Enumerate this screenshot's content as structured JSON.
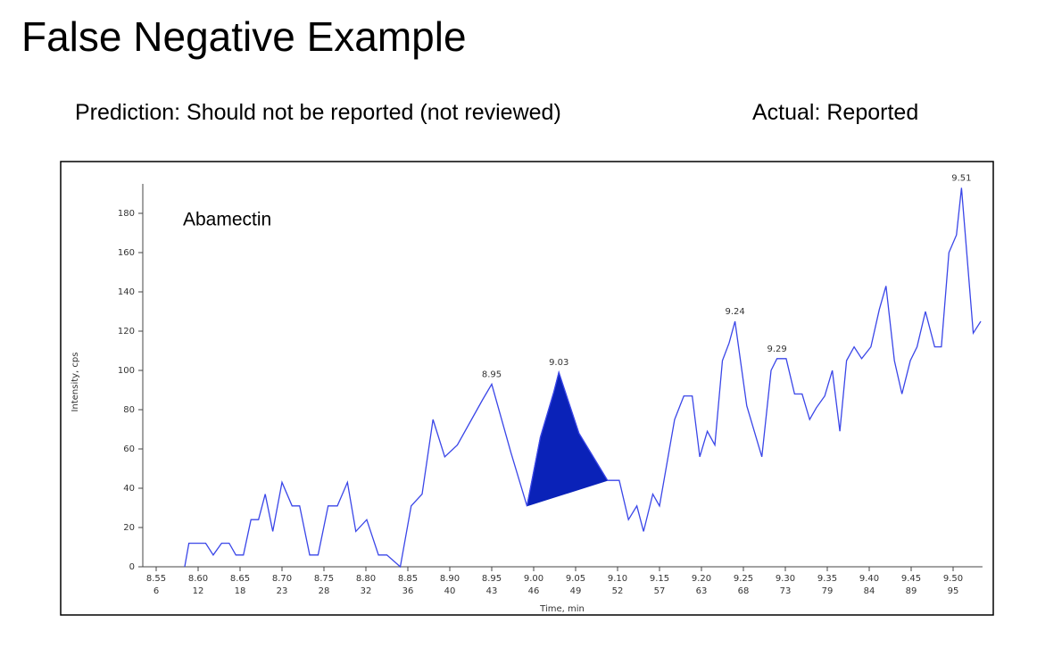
{
  "title": "False Negative Example",
  "prediction": "Prediction: Should not be reported (not reviewed)",
  "actual": "Actual: Reported",
  "chart_data": {
    "type": "line",
    "title": "Abamectin",
    "x_label": "Time, min",
    "y_label": "Intensity, cps",
    "xlim": [
      8.535,
      9.535
    ],
    "ylim": [
      0,
      195
    ],
    "yticks": [
      0,
      20,
      40,
      60,
      80,
      100,
      120,
      140,
      160,
      180
    ],
    "xticks": [
      {
        "value": 8.55,
        "label": "8.55"
      },
      {
        "value": 8.6,
        "label": "8.60"
      },
      {
        "value": 8.65,
        "label": "8.65"
      },
      {
        "value": 8.7,
        "label": "8.70"
      },
      {
        "value": 8.75,
        "label": "8.75"
      },
      {
        "value": 8.8,
        "label": "8.80"
      },
      {
        "value": 8.85,
        "label": "8.85"
      },
      {
        "value": 8.9,
        "label": "8.90"
      },
      {
        "value": 8.95,
        "label": "8.95"
      },
      {
        "value": 9.0,
        "label": "9.00"
      },
      {
        "value": 9.05,
        "label": "9.05"
      },
      {
        "value": 9.1,
        "label": "9.10"
      },
      {
        "value": 9.15,
        "label": "9.15"
      },
      {
        "value": 9.2,
        "label": "9.20"
      },
      {
        "value": 9.25,
        "label": "9.25"
      },
      {
        "value": 9.3,
        "label": "9.30"
      },
      {
        "value": 9.35,
        "label": "9.35"
      },
      {
        "value": 9.4,
        "label": "9.40"
      },
      {
        "value": 9.45,
        "label": "9.45"
      },
      {
        "value": 9.5,
        "label": "9.50"
      }
    ],
    "scan_labels": [
      6,
      12,
      18,
      23,
      28,
      32,
      36,
      40,
      43,
      46,
      49,
      52,
      57,
      63,
      68,
      73,
      79,
      84,
      89,
      95
    ],
    "series": [
      {
        "name": "Abamectin",
        "color": "#3a46e8",
        "x": [
          8.584,
          8.589,
          8.609,
          8.618,
          8.628,
          8.637,
          8.645,
          8.654,
          8.663,
          8.672,
          8.68,
          8.689,
          8.7,
          8.712,
          8.721,
          8.733,
          8.743,
          8.755,
          8.766,
          8.778,
          8.788,
          8.801,
          8.815,
          8.825,
          8.841,
          8.854,
          8.867,
          8.88,
          8.894,
          8.909,
          8.939,
          8.95,
          8.973,
          8.992,
          9.008,
          9.024,
          9.03,
          9.054,
          9.088,
          9.102,
          9.113,
          9.123,
          9.131,
          9.142,
          9.15,
          9.168,
          9.179,
          9.189,
          9.198,
          9.207,
          9.216,
          9.225,
          9.233,
          9.24,
          9.254,
          9.263,
          9.272,
          9.283,
          9.29,
          9.301,
          9.311,
          9.32,
          9.329,
          9.337,
          9.347,
          9.356,
          9.365,
          9.373,
          9.382,
          9.391,
          9.402,
          9.412,
          9.42,
          9.43,
          9.439,
          9.449,
          9.457,
          9.467,
          9.478,
          9.486,
          9.495,
          9.504,
          9.51,
          9.524,
          9.533
        ],
        "values": [
          0,
          12,
          12,
          6,
          12,
          12,
          6,
          6,
          24,
          24,
          37,
          18,
          43,
          31,
          31,
          6,
          6,
          31,
          31,
          43,
          18,
          24,
          6,
          6,
          0,
          31,
          37,
          75,
          56,
          62,
          85,
          93,
          58,
          31,
          66,
          89,
          99,
          68,
          44,
          44,
          24,
          31,
          18,
          37,
          31,
          75,
          87,
          87,
          56,
          69,
          62,
          105,
          114,
          125,
          82,
          69,
          56,
          100,
          106,
          106,
          88,
          88,
          75,
          81,
          87,
          100,
          69,
          105,
          112,
          106,
          112,
          131,
          143,
          105,
          88,
          105,
          112,
          130,
          112,
          112,
          160,
          169,
          193,
          119,
          125
        ]
      }
    ],
    "peak_labels": [
      8.95,
      9.03,
      9.24,
      9.29,
      9.51
    ],
    "integrated_peak": {
      "x": [
        8.992,
        9.088
      ],
      "color": "#0a22b8"
    }
  }
}
